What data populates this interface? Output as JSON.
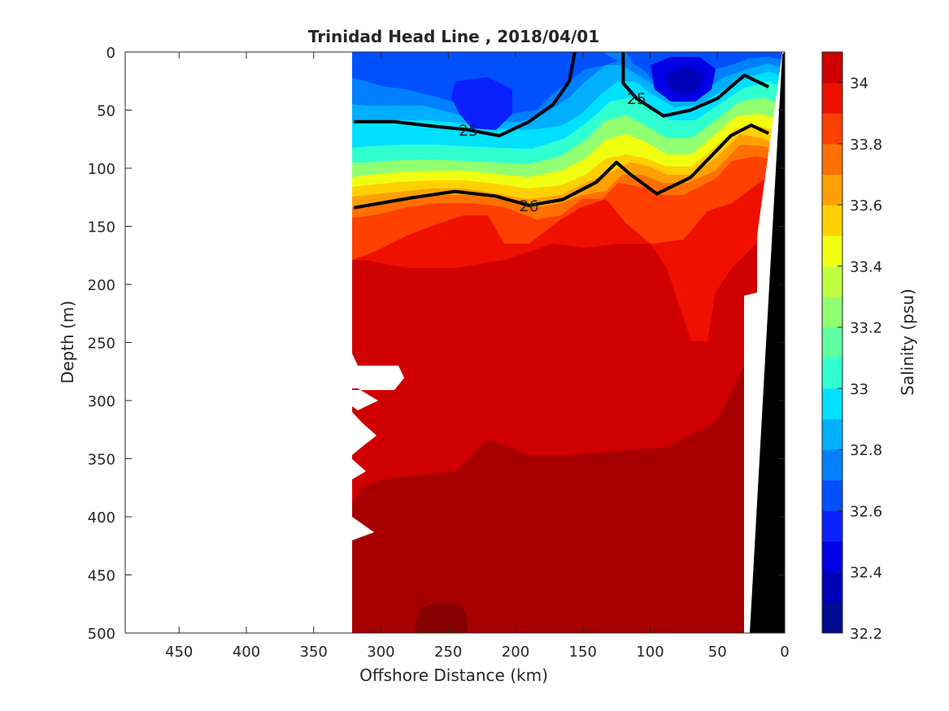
{
  "chart_data": {
    "type": "heatmap",
    "title": "Trinidad Head Line , 2018/04/01",
    "xlabel": "Offshore Distance (km)",
    "ylabel": "Depth (m)",
    "xlim": [
      490,
      0
    ],
    "ylim": [
      500,
      0
    ],
    "xticks": [
      450,
      400,
      350,
      300,
      250,
      200,
      150,
      100,
      50,
      0
    ],
    "yticks": [
      0,
      50,
      100,
      150,
      200,
      250,
      300,
      350,
      400,
      450,
      500
    ],
    "colorbar": {
      "label": "Salinity (psu)",
      "range": [
        32.2,
        34.1
      ],
      "tick_values": [
        32.2,
        32.4,
        32.6,
        32.8,
        33,
        33.2,
        33.4,
        33.6,
        33.8,
        34
      ],
      "tick_labels": [
        "32.2",
        "32.4",
        "32.6",
        "32.8",
        "33",
        "33.2",
        "33.4",
        "33.6",
        "33.8",
        "34"
      ],
      "levels": [
        32.2,
        32.3,
        32.4,
        32.5,
        32.6,
        32.7,
        32.8,
        32.9,
        33.0,
        33.1,
        33.2,
        33.3,
        33.4,
        33.5,
        33.6,
        33.7,
        33.8,
        33.9,
        34.0,
        34.1
      ],
      "colors": [
        "#000c8f",
        "#0000b8",
        "#0000e6",
        "#0a20ff",
        "#0050ff",
        "#0080ff",
        "#00b0ff",
        "#00e0ff",
        "#30ffd0",
        "#60ffa0",
        "#90ff70",
        "#c0ff40",
        "#f0ff10",
        "#ffd000",
        "#ffa000",
        "#ff7000",
        "#ff4000",
        "#ef1000",
        "#d00000",
        "#a80000"
      ]
    },
    "density_contours": [
      {
        "value": 25,
        "label": "25",
        "points": [
          [
            320,
            60
          ],
          [
            290,
            60
          ],
          [
            260,
            64
          ],
          [
            235,
            67
          ],
          [
            212,
            72
          ],
          [
            190,
            60
          ],
          [
            172,
            45
          ],
          [
            160,
            25
          ],
          [
            156,
            0
          ]
        ]
      },
      {
        "value": 25,
        "label": "25",
        "points": [
          [
            120,
            0
          ],
          [
            120,
            27
          ],
          [
            110,
            40
          ],
          [
            90,
            55
          ],
          [
            70,
            50
          ],
          [
            50,
            40
          ],
          [
            30,
            20
          ],
          [
            12,
            30
          ]
        ]
      },
      {
        "value": 26,
        "label": "26",
        "points": [
          [
            320,
            134
          ],
          [
            300,
            130
          ],
          [
            275,
            125
          ],
          [
            245,
            120
          ],
          [
            215,
            124
          ],
          [
            190,
            132
          ],
          [
            165,
            127
          ],
          [
            140,
            112
          ],
          [
            125,
            95
          ],
          [
            115,
            105
          ],
          [
            95,
            122
          ],
          [
            70,
            108
          ],
          [
            55,
            90
          ],
          [
            40,
            72
          ],
          [
            25,
            63
          ],
          [
            12,
            70
          ]
        ]
      }
    ],
    "ocean_extent_km": 320,
    "bottom_depth_profile": [
      [
        30,
        500
      ],
      [
        28,
        210
      ],
      [
        25,
        205
      ],
      [
        22,
        160
      ],
      [
        10,
        0
      ]
    ]
  }
}
